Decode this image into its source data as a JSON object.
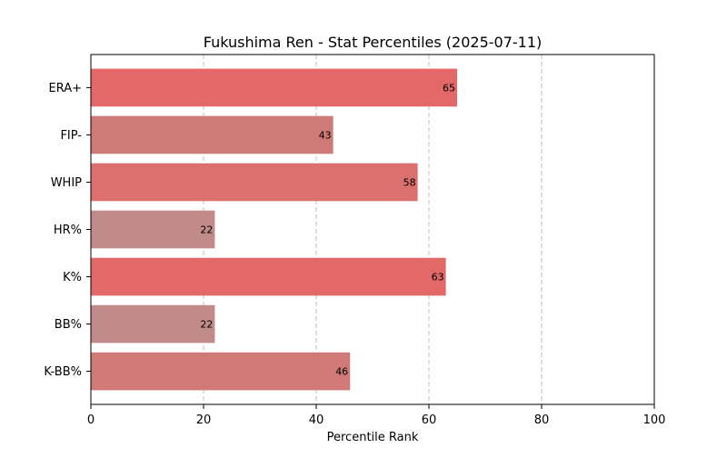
{
  "chart_data": {
    "type": "bar",
    "orientation": "horizontal",
    "title": "Fukushima Ren - Stat Percentiles (2025-07-11)",
    "xlabel": "Percentile Rank",
    "ylabel": "",
    "xlim": [
      0,
      100
    ],
    "xticks": [
      "0",
      "20",
      "40",
      "60",
      "80",
      "100"
    ],
    "xtick_values": [
      0,
      20,
      40,
      60,
      80,
      100
    ],
    "grid": "x-dashed",
    "categories": [
      "ERA+",
      "FIP-",
      "WHIP",
      "HR%",
      "K%",
      "BB%",
      "K-BB%"
    ],
    "values": [
      65,
      43,
      58,
      22,
      63,
      22,
      46
    ],
    "data_labels": [
      "65",
      "43",
      "58",
      "22",
      "63",
      "22",
      "46"
    ],
    "bar_colors": [
      "#e46867",
      "#cf7a77",
      "#dc706e",
      "#c08b88",
      "#e36968",
      "#c08b88",
      "#d07976"
    ]
  }
}
